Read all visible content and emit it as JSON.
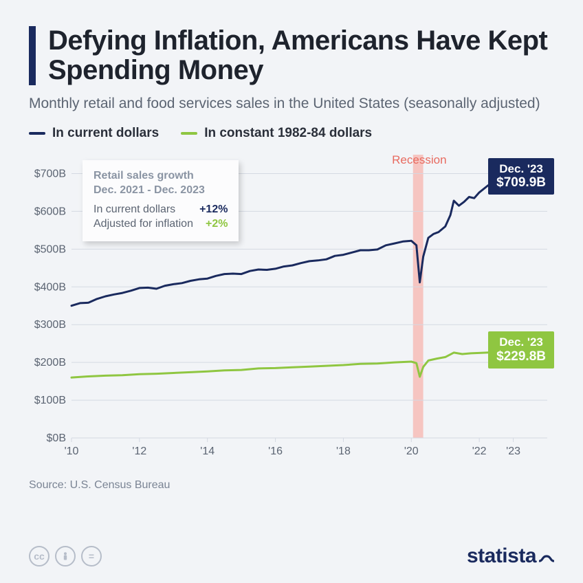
{
  "title": "Defying Inflation, Americans Have Kept Spending Money",
  "subtitle": "Monthly retail and food services sales in the United States (seasonally adjusted)",
  "legend": {
    "series_a": {
      "label": "In current dollars",
      "color": "#1a2a5e"
    },
    "series_b": {
      "label": "In constant 1982-84 dollars",
      "color": "#8fc641"
    }
  },
  "chart": {
    "type": "line",
    "background_color": "#f2f4f7",
    "grid_color": "#d4d9e2",
    "axis_text_color": "#5b6472",
    "x_range": [
      2010,
      2024
    ],
    "y_range": [
      0,
      750
    ],
    "y_ticks": [
      0,
      100,
      200,
      300,
      400,
      500,
      600,
      700
    ],
    "y_tick_labels": [
      "$0B",
      "$100B",
      "$200B",
      "$300B",
      "$400B",
      "$500B",
      "$600B",
      "$700B"
    ],
    "x_ticks": [
      2010,
      2012,
      2014,
      2016,
      2018,
      2020,
      2022,
      2023
    ],
    "x_tick_labels": [
      "'10",
      "'12",
      "'14",
      "'16",
      "'18",
      "'20",
      "'22",
      "'23"
    ],
    "line_width": 3,
    "recession": {
      "label": "Recession",
      "x_start": 2020.05,
      "x_end": 2020.35,
      "fill": "#f6c5c1",
      "label_color": "#e86a5f"
    },
    "series_a_points": [
      [
        2010.0,
        350
      ],
      [
        2010.25,
        357
      ],
      [
        2010.5,
        358
      ],
      [
        2010.75,
        368
      ],
      [
        2011.0,
        375
      ],
      [
        2011.25,
        380
      ],
      [
        2011.5,
        384
      ],
      [
        2011.75,
        390
      ],
      [
        2012.0,
        397
      ],
      [
        2012.25,
        398
      ],
      [
        2012.5,
        395
      ],
      [
        2012.75,
        403
      ],
      [
        2013.0,
        407
      ],
      [
        2013.25,
        410
      ],
      [
        2013.5,
        416
      ],
      [
        2013.75,
        420
      ],
      [
        2014.0,
        422
      ],
      [
        2014.25,
        429
      ],
      [
        2014.5,
        434
      ],
      [
        2014.75,
        435
      ],
      [
        2015.0,
        434
      ],
      [
        2015.25,
        442
      ],
      [
        2015.5,
        446
      ],
      [
        2015.75,
        445
      ],
      [
        2016.0,
        448
      ],
      [
        2016.25,
        454
      ],
      [
        2016.5,
        457
      ],
      [
        2016.75,
        463
      ],
      [
        2017.0,
        468
      ],
      [
        2017.25,
        470
      ],
      [
        2017.5,
        473
      ],
      [
        2017.75,
        482
      ],
      [
        2018.0,
        485
      ],
      [
        2018.25,
        491
      ],
      [
        2018.5,
        497
      ],
      [
        2018.75,
        497
      ],
      [
        2019.0,
        499
      ],
      [
        2019.25,
        510
      ],
      [
        2019.5,
        515
      ],
      [
        2019.75,
        520
      ],
      [
        2020.0,
        522
      ],
      [
        2020.15,
        510
      ],
      [
        2020.25,
        412
      ],
      [
        2020.35,
        480
      ],
      [
        2020.5,
        530
      ],
      [
        2020.65,
        540
      ],
      [
        2020.8,
        545
      ],
      [
        2021.0,
        560
      ],
      [
        2021.15,
        590
      ],
      [
        2021.25,
        628
      ],
      [
        2021.4,
        615
      ],
      [
        2021.55,
        625
      ],
      [
        2021.7,
        638
      ],
      [
        2021.85,
        635
      ],
      [
        2022.0,
        650
      ],
      [
        2022.25,
        668
      ],
      [
        2022.5,
        680
      ],
      [
        2022.75,
        678
      ],
      [
        2023.0,
        685
      ],
      [
        2023.25,
        688
      ],
      [
        2023.5,
        695
      ],
      [
        2023.75,
        703
      ],
      [
        2024.0,
        709.9
      ]
    ],
    "series_b_points": [
      [
        2010.0,
        160
      ],
      [
        2010.5,
        163
      ],
      [
        2011.0,
        165
      ],
      [
        2011.5,
        166
      ],
      [
        2012.0,
        169
      ],
      [
        2012.5,
        170
      ],
      [
        2013.0,
        172
      ],
      [
        2013.5,
        174
      ],
      [
        2014.0,
        176
      ],
      [
        2014.5,
        179
      ],
      [
        2015.0,
        180
      ],
      [
        2015.5,
        184
      ],
      [
        2016.0,
        185
      ],
      [
        2016.5,
        187
      ],
      [
        2017.0,
        189
      ],
      [
        2017.5,
        191
      ],
      [
        2018.0,
        193
      ],
      [
        2018.5,
        196
      ],
      [
        2019.0,
        197
      ],
      [
        2019.5,
        200
      ],
      [
        2020.0,
        202
      ],
      [
        2020.15,
        198
      ],
      [
        2020.25,
        162
      ],
      [
        2020.35,
        188
      ],
      [
        2020.5,
        205
      ],
      [
        2020.75,
        210
      ],
      [
        2021.0,
        214
      ],
      [
        2021.25,
        226
      ],
      [
        2021.5,
        222
      ],
      [
        2021.75,
        224
      ],
      [
        2022.0,
        225
      ],
      [
        2022.5,
        227
      ],
      [
        2023.0,
        225
      ],
      [
        2023.5,
        226
      ],
      [
        2024.0,
        229.8
      ]
    ],
    "end_labels": {
      "a": {
        "date": "Dec. '23",
        "value": "$709.9B",
        "bg": "#1a2a5e"
      },
      "b": {
        "date": "Dec. '23",
        "value": "$229.8B",
        "bg": "#8fc641"
      }
    }
  },
  "info_box": {
    "header_line1": "Retail sales growth",
    "header_line2": "Dec. 2021 - Dec. 2023",
    "rows": [
      {
        "label": "In current dollars",
        "pct": "+12%",
        "color": "#1a2a5e"
      },
      {
        "label": "Adjusted for inflation",
        "pct": "+2%",
        "color": "#8fc641"
      }
    ]
  },
  "source": "Source: U.S. Census Bureau",
  "footer": {
    "cc_icons": [
      "cc",
      "by",
      "nd"
    ],
    "brand": "statista"
  }
}
